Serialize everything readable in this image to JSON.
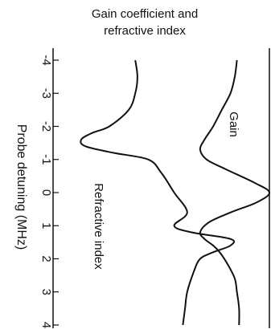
{
  "chart_data": {
    "type": "line",
    "title": "Gain coefficient and\nrefractive index",
    "xlabel": "Probe detuning (MHz)",
    "ylabel": "",
    "xlim": [
      -4,
      4
    ],
    "x_ticks": [
      -4,
      -3,
      -2,
      -1,
      0,
      1,
      2,
      3,
      4
    ],
    "x_tick_labels": [
      "-4",
      "-3",
      "-2",
      "-1",
      "0",
      "1",
      "2",
      "3",
      "4"
    ],
    "orientation": "rotated-90-clockwise",
    "grid": false,
    "annotations": [
      "Gain",
      "Refractive index"
    ],
    "series": [
      {
        "label": "Gain",
        "x": [
          -4,
          -3.5,
          -3,
          -2.5,
          -2,
          -1.6,
          -1.3,
          -1.0,
          -0.7,
          -0.3,
          0.0,
          0.3,
          0.6,
          0.9,
          1.2,
          1.4,
          1.6,
          1.8,
          2.2,
          2.6,
          3.0,
          3.5,
          4.0
        ],
        "y": [
          0.85,
          0.84,
          0.82,
          0.78,
          0.74,
          0.7,
          0.68,
          0.71,
          0.8,
          0.93,
          1.0,
          0.94,
          0.82,
          0.72,
          0.68,
          0.7,
          0.74,
          0.77,
          0.81,
          0.84,
          0.85,
          0.86,
          0.86
        ]
      },
      {
        "label": "Refractive index",
        "x": [
          -4,
          -3.5,
          -3,
          -2.5,
          -2,
          -1.8,
          -1.6,
          -1.4,
          -1.2,
          -1.0,
          -0.6,
          0.0,
          0.6,
          1.0,
          1.2,
          1.4,
          1.6,
          1.8,
          2.0,
          2.4,
          3.0,
          3.5,
          4.0
        ],
        "y": [
          0.38,
          0.39,
          0.38,
          0.35,
          0.26,
          0.18,
          0.13,
          0.15,
          0.28,
          0.44,
          0.5,
          0.56,
          0.62,
          0.56,
          0.64,
          0.82,
          0.82,
          0.74,
          0.68,
          0.65,
          0.62,
          0.61,
          0.6
        ]
      }
    ]
  }
}
